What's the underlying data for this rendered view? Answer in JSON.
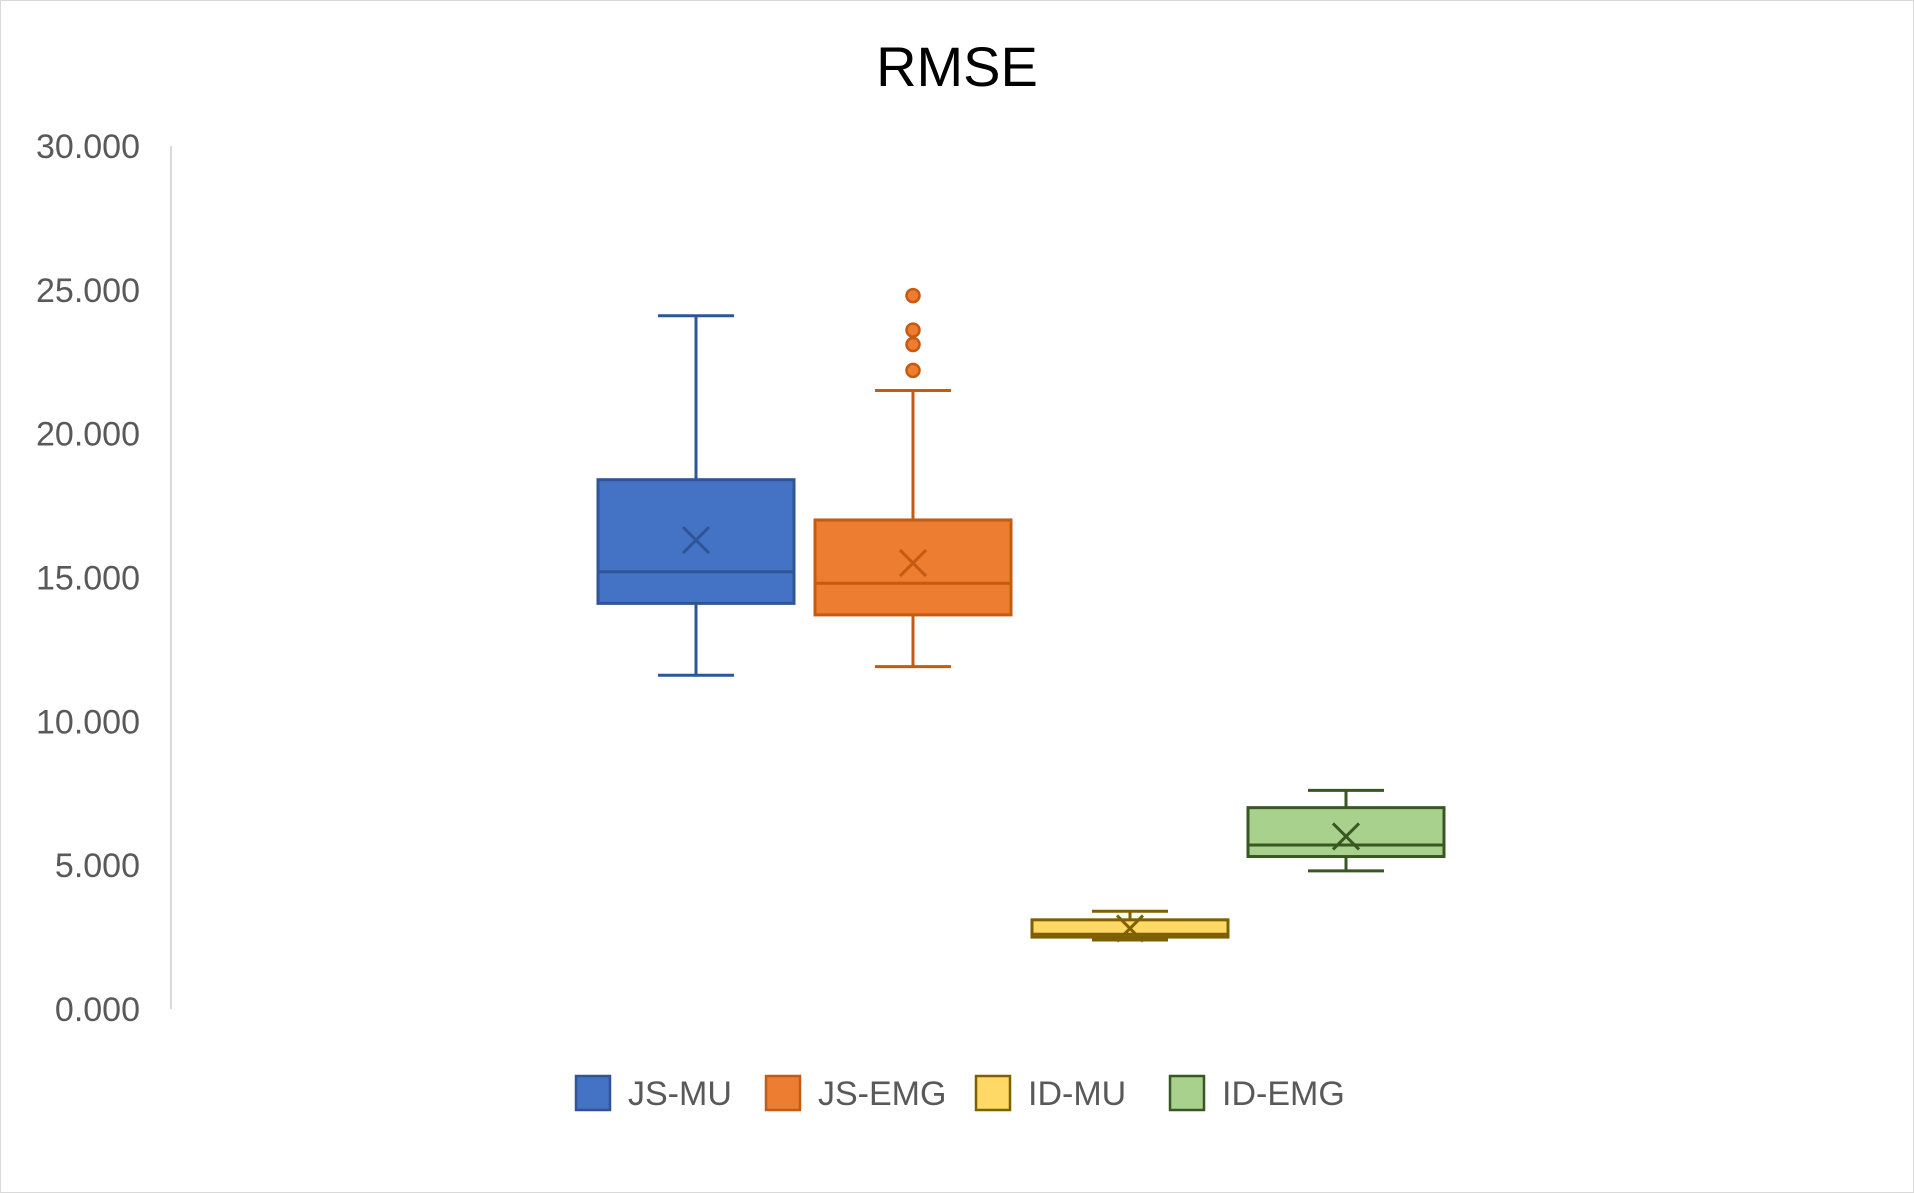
{
  "chart_data": {
    "type": "box",
    "title": "RMSE",
    "xlabel": "",
    "ylabel": "",
    "ylim": [
      0,
      30
    ],
    "yticks": [
      "0.000",
      "5.000",
      "10.000",
      "15.000",
      "20.000",
      "25.000",
      "30.000"
    ],
    "grid": false,
    "legend_position": "bottom",
    "series": [
      {
        "name": "JS-MU",
        "min": 11.6,
        "q1": 14.1,
        "median": 15.2,
        "q3": 18.4,
        "max": 24.1,
        "mean": 16.3,
        "outliers": [],
        "fill": "#4472C4",
        "stroke": "#2F5597"
      },
      {
        "name": "JS-EMG",
        "min": 11.9,
        "q1": 13.7,
        "median": 14.8,
        "q3": 17.0,
        "max": 21.5,
        "mean": 15.5,
        "outliers": [
          22.2,
          23.1,
          23.6,
          24.8
        ],
        "fill": "#ED7D31",
        "stroke": "#C55A11"
      },
      {
        "name": "ID-MU",
        "min": 2.4,
        "q1": 2.5,
        "median": 2.6,
        "q3": 3.1,
        "max": 3.4,
        "mean": 2.8,
        "outliers": [],
        "fill": "#FFD966",
        "stroke": "#7F6000"
      },
      {
        "name": "ID-EMG",
        "min": 4.8,
        "q1": 5.3,
        "median": 5.7,
        "q3": 7.0,
        "max": 7.6,
        "mean": 6.0,
        "outliers": [],
        "fill": "#A9D18E",
        "stroke": "#385723"
      }
    ]
  }
}
